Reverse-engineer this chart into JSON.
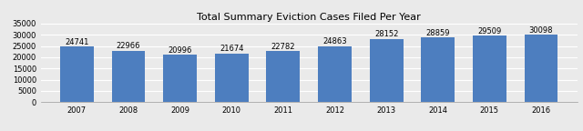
{
  "title": "Total Summary Eviction Cases Filed Per Year",
  "years": [
    2007,
    2008,
    2009,
    2010,
    2011,
    2012,
    2013,
    2014,
    2015,
    2016
  ],
  "values": [
    24741,
    22966,
    20996,
    21674,
    22782,
    24863,
    28152,
    28859,
    29509,
    30098
  ],
  "bar_color": "#4d7ebf",
  "ylim": [
    0,
    35000
  ],
  "yticks": [
    0,
    5000,
    10000,
    15000,
    20000,
    25000,
    30000,
    35000
  ],
  "background_color": "#eaeaea",
  "grid_color": "#ffffff",
  "title_fontsize": 8,
  "tick_fontsize": 6,
  "bar_label_fontsize": 6
}
